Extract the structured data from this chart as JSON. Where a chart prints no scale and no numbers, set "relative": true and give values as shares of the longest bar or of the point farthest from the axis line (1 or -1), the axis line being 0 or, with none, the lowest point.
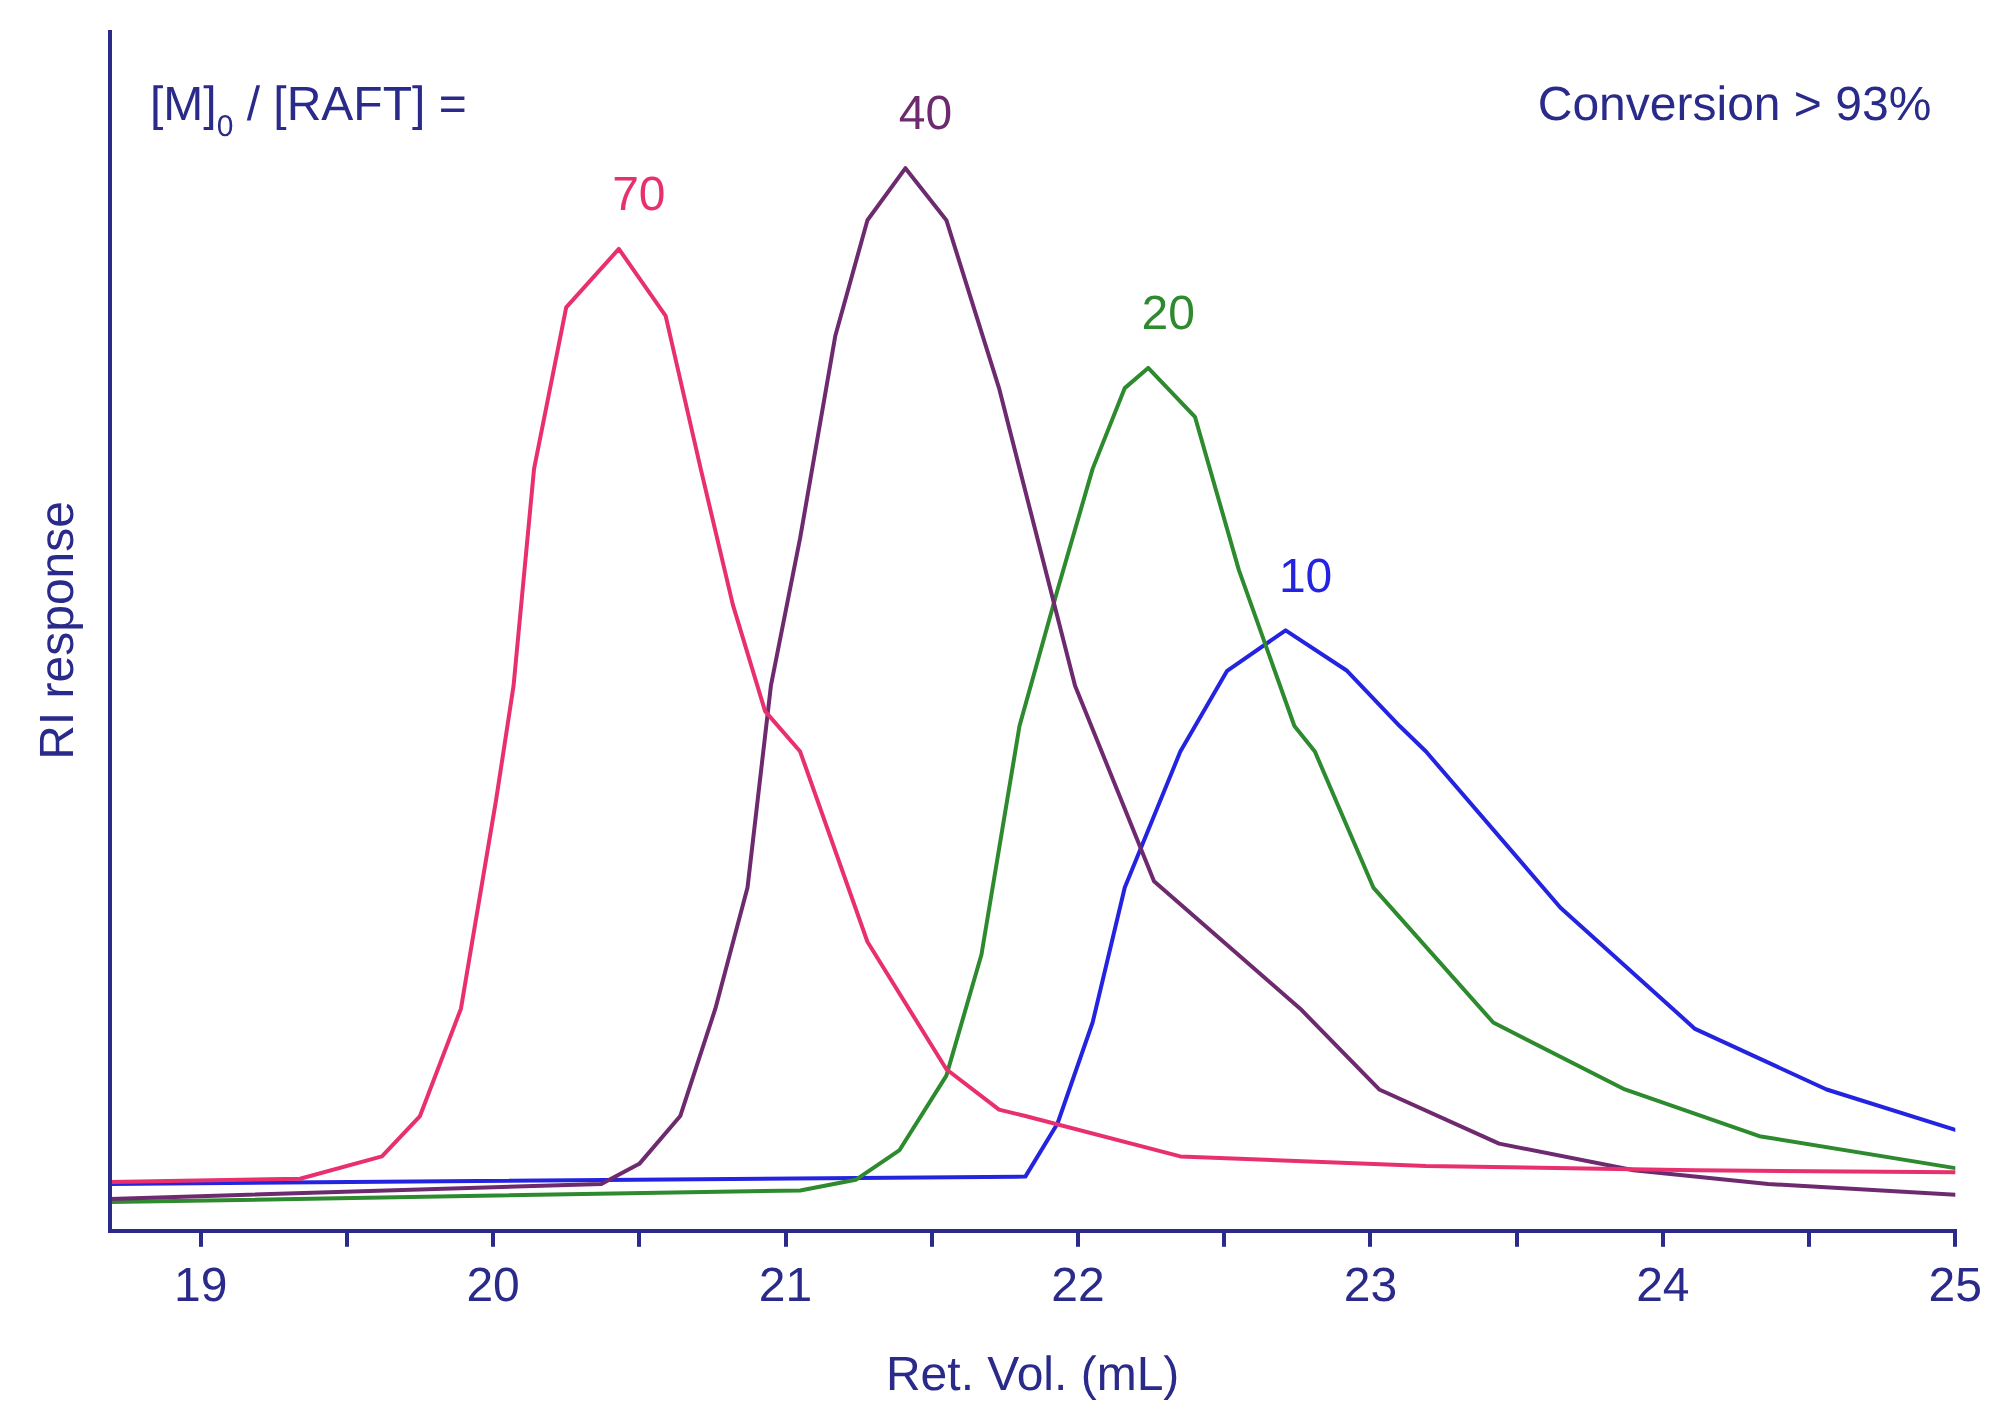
{
  "chart_data": {
    "type": "line",
    "relative": true,
    "xlabel": "Ret. Vol. (mL)",
    "ylabel": "RI response",
    "annotations": [
      "[M]$_{0}$ / [RAFT] =",
      "Conversion > 93%"
    ],
    "xlim": [
      18.69,
      25
    ],
    "xticks": [
      19,
      {
        "value": 19.5,
        "label": null
      },
      20,
      {
        "value": 20.5,
        "label": null
      },
      21,
      {
        "value": 21.5,
        "label": null
      },
      22,
      {
        "value": 22.5,
        "label": null
      },
      23,
      {
        "value": 23.5,
        "label": null
      },
      24,
      {
        "value": 24.5,
        "label": null
      },
      25
    ],
    "grid": false,
    "legend": false,
    "marker": "none",
    "line_style": "solid",
    "series": [
      {
        "name": "70",
        "color": "#e8306e",
        "x": [
          18.69,
          19.34,
          19.62,
          19.75,
          19.89,
          20.01,
          20.07,
          20.14,
          20.25,
          20.43,
          20.59,
          20.71,
          20.82,
          20.93,
          21.05,
          21.28,
          21.55,
          21.73,
          21.82,
          22.35,
          23.19,
          24.11,
          25
        ],
        "values": [
          0.046,
          0.049,
          0.07,
          0.108,
          0.209,
          0.405,
          0.513,
          0.717,
          0.869,
          0.924,
          0.861,
          0.717,
          0.589,
          0.489,
          0.451,
          0.272,
          0.152,
          0.114,
          0.108,
          0.07,
          0.061,
          0.057,
          0.055
        ]
      },
      {
        "name": "40",
        "color": "#6e2a6e",
        "x": [
          18.69,
          20.37,
          20.5,
          20.64,
          20.76,
          20.87,
          20.95,
          21.05,
          21.17,
          21.28,
          21.41,
          21.55,
          21.73,
          21.99,
          22.26,
          22.76,
          23.03,
          23.44,
          23.9,
          24.36,
          25
        ],
        "values": [
          0.03,
          0.044,
          0.063,
          0.108,
          0.209,
          0.323,
          0.513,
          0.652,
          0.842,
          0.951,
          1,
          0.951,
          0.793,
          0.513,
          0.329,
          0.209,
          0.133,
          0.082,
          0.057,
          0.044,
          0.034
        ]
      },
      {
        "name": "20",
        "color": "#2e8a2e",
        "x": [
          18.69,
          21.05,
          21.24,
          21.39,
          21.55,
          21.67,
          21.8,
          21.93,
          22.05,
          22.16,
          22.24,
          22.4,
          22.55,
          22.74,
          22.81,
          23.01,
          23.42,
          23.87,
          24.33,
          25
        ],
        "values": [
          0.027,
          0.038,
          0.048,
          0.076,
          0.146,
          0.26,
          0.475,
          0.603,
          0.717,
          0.793,
          0.812,
          0.766,
          0.622,
          0.475,
          0.451,
          0.323,
          0.196,
          0.133,
          0.089,
          0.059
        ]
      },
      {
        "name": "10",
        "color": "#2424e0",
        "x": [
          18.69,
          21.82,
          21.93,
          22.05,
          22.16,
          22.35,
          22.51,
          22.71,
          22.92,
          23.1,
          23.19,
          23.65,
          24.11,
          24.56,
          25
        ],
        "values": [
          0.044,
          0.051,
          0.101,
          0.196,
          0.323,
          0.451,
          0.527,
          0.565,
          0.527,
          0.475,
          0.451,
          0.304,
          0.19,
          0.133,
          0.095
        ]
      }
    ]
  }
}
